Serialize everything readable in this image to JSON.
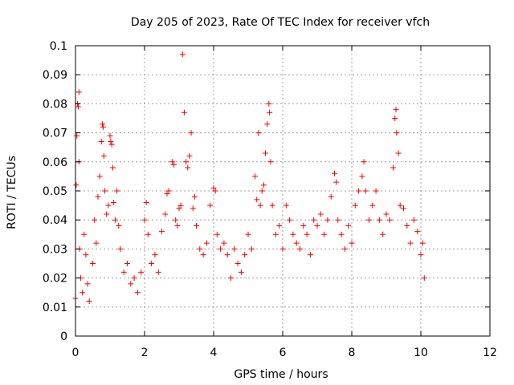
{
  "chart_data": {
    "type": "scatter",
    "title": "Day 205 of 2023, Rate Of TEC Index for receiver vfch",
    "xlabel": "GPS time / hours",
    "ylabel": "ROTI / TECUs",
    "xlim": [
      0,
      12
    ],
    "ylim": [
      0,
      0.1
    ],
    "x_ticks": [
      "0",
      "2",
      "4",
      "6",
      "8",
      "10",
      "12"
    ],
    "y_ticks": [
      "0",
      "0.01",
      "0.02",
      "0.03",
      "0.04",
      "0.05",
      "0.06",
      "0.07",
      "0.08",
      "0.09",
      "0.1"
    ],
    "grid": true,
    "marker": "+",
    "color": "#ff0000",
    "series": [
      {
        "points": [
          [
            0.0,
            0.013
          ],
          [
            0.02,
            0.052
          ],
          [
            0.04,
            0.069
          ],
          [
            0.06,
            0.08
          ],
          [
            0.08,
            0.079
          ],
          [
            0.1,
            0.084
          ],
          [
            0.1,
            0.06
          ],
          [
            0.12,
            0.03
          ],
          [
            0.15,
            0.02
          ],
          [
            0.2,
            0.015
          ],
          [
            0.25,
            0.035
          ],
          [
            0.3,
            0.028
          ],
          [
            0.35,
            0.018
          ],
          [
            0.4,
            0.012
          ],
          [
            0.5,
            0.025
          ],
          [
            0.55,
            0.04
          ],
          [
            0.6,
            0.032
          ],
          [
            0.65,
            0.048
          ],
          [
            0.7,
            0.055
          ],
          [
            0.75,
            0.067
          ],
          [
            0.78,
            0.073
          ],
          [
            0.8,
            0.072
          ],
          [
            0.82,
            0.062
          ],
          [
            0.85,
            0.05
          ],
          [
            0.9,
            0.042
          ],
          [
            0.95,
            0.045
          ],
          [
            1.0,
            0.069
          ],
          [
            1.02,
            0.067
          ],
          [
            1.05,
            0.066
          ],
          [
            1.08,
            0.058
          ],
          [
            1.1,
            0.046
          ],
          [
            1.15,
            0.04
          ],
          [
            1.2,
            0.05
          ],
          [
            1.25,
            0.038
          ],
          [
            1.3,
            0.03
          ],
          [
            1.4,
            0.022
          ],
          [
            1.5,
            0.025
          ],
          [
            1.6,
            0.018
          ],
          [
            1.7,
            0.02
          ],
          [
            1.8,
            0.015
          ],
          [
            1.9,
            0.022
          ],
          [
            2.0,
            0.04
          ],
          [
            2.05,
            0.046
          ],
          [
            2.1,
            0.035
          ],
          [
            2.2,
            0.025
          ],
          [
            2.3,
            0.028
          ],
          [
            2.4,
            0.022
          ],
          [
            2.5,
            0.036
          ],
          [
            2.6,
            0.042
          ],
          [
            2.65,
            0.049
          ],
          [
            2.7,
            0.05
          ],
          [
            2.8,
            0.06
          ],
          [
            2.85,
            0.059
          ],
          [
            2.9,
            0.04
          ],
          [
            2.95,
            0.038
          ],
          [
            3.0,
            0.044
          ],
          [
            3.05,
            0.045
          ],
          [
            3.1,
            0.097
          ],
          [
            3.15,
            0.077
          ],
          [
            3.2,
            0.06
          ],
          [
            3.25,
            0.058
          ],
          [
            3.3,
            0.062
          ],
          [
            3.35,
            0.07
          ],
          [
            3.4,
            0.044
          ],
          [
            3.45,
            0.048
          ],
          [
            3.5,
            0.038
          ],
          [
            3.6,
            0.03
          ],
          [
            3.7,
            0.028
          ],
          [
            3.8,
            0.032
          ],
          [
            3.9,
            0.045
          ],
          [
            4.0,
            0.051
          ],
          [
            4.05,
            0.05
          ],
          [
            4.1,
            0.035
          ],
          [
            4.2,
            0.03
          ],
          [
            4.3,
            0.032
          ],
          [
            4.4,
            0.028
          ],
          [
            4.5,
            0.02
          ],
          [
            4.6,
            0.03
          ],
          [
            4.7,
            0.025
          ],
          [
            4.8,
            0.022
          ],
          [
            4.9,
            0.028
          ],
          [
            5.0,
            0.035
          ],
          [
            5.1,
            0.03
          ],
          [
            5.2,
            0.055
          ],
          [
            5.25,
            0.047
          ],
          [
            5.3,
            0.07
          ],
          [
            5.35,
            0.045
          ],
          [
            5.4,
            0.05
          ],
          [
            5.45,
            0.052
          ],
          [
            5.5,
            0.063
          ],
          [
            5.55,
            0.073
          ],
          [
            5.6,
            0.08
          ],
          [
            5.62,
            0.077
          ],
          [
            5.65,
            0.06
          ],
          [
            5.7,
            0.045
          ],
          [
            5.8,
            0.035
          ],
          [
            5.9,
            0.038
          ],
          [
            6.0,
            0.03
          ],
          [
            6.1,
            0.045
          ],
          [
            6.2,
            0.04
          ],
          [
            6.3,
            0.035
          ],
          [
            6.4,
            0.032
          ],
          [
            6.5,
            0.03
          ],
          [
            6.6,
            0.038
          ],
          [
            6.7,
            0.035
          ],
          [
            6.8,
            0.028
          ],
          [
            6.9,
            0.04
          ],
          [
            7.0,
            0.038
          ],
          [
            7.1,
            0.042
          ],
          [
            7.2,
            0.035
          ],
          [
            7.3,
            0.04
          ],
          [
            7.4,
            0.048
          ],
          [
            7.5,
            0.056
          ],
          [
            7.55,
            0.053
          ],
          [
            7.6,
            0.04
          ],
          [
            7.7,
            0.035
          ],
          [
            7.8,
            0.03
          ],
          [
            7.9,
            0.038
          ],
          [
            8.0,
            0.032
          ],
          [
            8.1,
            0.045
          ],
          [
            8.2,
            0.05
          ],
          [
            8.3,
            0.055
          ],
          [
            8.35,
            0.06
          ],
          [
            8.4,
            0.05
          ],
          [
            8.5,
            0.04
          ],
          [
            8.6,
            0.045
          ],
          [
            8.7,
            0.05
          ],
          [
            8.8,
            0.04
          ],
          [
            8.9,
            0.035
          ],
          [
            9.0,
            0.042
          ],
          [
            9.1,
            0.04
          ],
          [
            9.2,
            0.058
          ],
          [
            9.25,
            0.075
          ],
          [
            9.28,
            0.078
          ],
          [
            9.3,
            0.07
          ],
          [
            9.35,
            0.063
          ],
          [
            9.4,
            0.045
          ],
          [
            9.5,
            0.044
          ],
          [
            9.6,
            0.038
          ],
          [
            9.7,
            0.032
          ],
          [
            9.8,
            0.04
          ],
          [
            9.9,
            0.036
          ],
          [
            10.0,
            0.028
          ],
          [
            10.05,
            0.032
          ],
          [
            10.1,
            0.02
          ]
        ]
      }
    ]
  }
}
